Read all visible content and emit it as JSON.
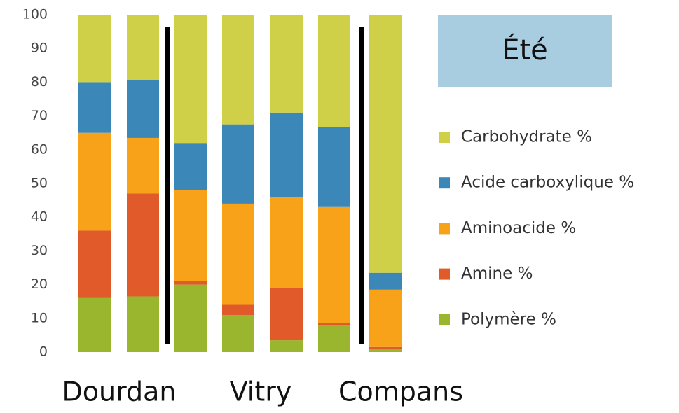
{
  "chart_data": {
    "type": "stacked_bar",
    "title": "Été",
    "categories": [
      null,
      null,
      null,
      null,
      null,
      null,
      null
    ],
    "group_labels": [
      "Dourdan",
      "Vitry",
      "Compans"
    ],
    "series": [
      {
        "name": "Polymère %",
        "color": "#9ab52e",
        "values": [
          16,
          16.5,
          20,
          11,
          3.5,
          8,
          1
        ]
      },
      {
        "name": "Amine %",
        "color": "#e05a2a",
        "values": [
          20,
          30.5,
          1,
          3,
          15.5,
          0.7,
          0.5
        ]
      },
      {
        "name": "Aminoacide %",
        "color": "#f8a21a",
        "values": [
          29,
          16.5,
          27,
          30,
          27,
          34.5,
          17
        ]
      },
      {
        "name": "Acide carboxylique %",
        "color": "#3a87b8",
        "values": [
          15,
          17,
          14,
          23.5,
          25,
          23.4,
          5
        ]
      },
      {
        "name": "Carbohydrate %",
        "color": "#cfcf48",
        "values": [
          20,
          19.5,
          38,
          32.5,
          29,
          33.4,
          76.5
        ]
      }
    ],
    "ylim": [
      0,
      100
    ],
    "yticks": [
      0,
      10,
      20,
      30,
      40,
      50,
      60,
      70,
      80,
      90,
      100
    ],
    "grid": false
  }
}
